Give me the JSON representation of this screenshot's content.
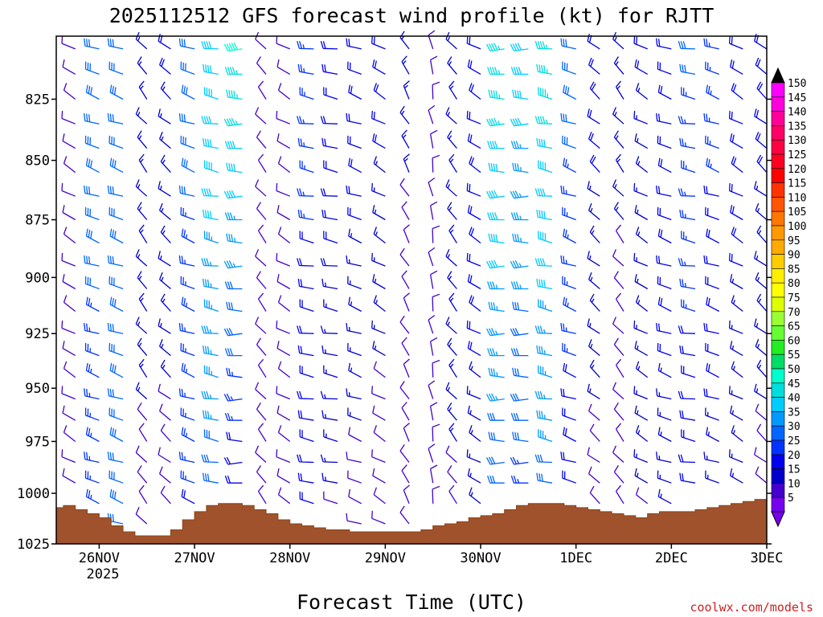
{
  "title": "2025112512 GFS forecast wind profile (kt) for RJTT",
  "credit": "coolwx.com/models",
  "colors": {
    "terrain": "#a0522d",
    "terrain_stroke": "#8b4513",
    "frame": "#000000",
    "credit": "#cc2222"
  },
  "chart_data": {
    "type": "wind-barb-profile",
    "title": "2025112512 GFS forecast wind profile (kt) for RJTT",
    "xlabel": "Forecast Time (UTC)",
    "ylabel": "",
    "y_ticks": [
      "825",
      "850",
      "875",
      "900",
      "925",
      "950",
      "975",
      "1000",
      "1025"
    ],
    "y_range_hpa": [
      800,
      1025
    ],
    "x_ticks": [
      "26NOV",
      "27NOV",
      "28NOV",
      "29NOV",
      "30NOV",
      "1DEC",
      "2DEC",
      "3DEC"
    ],
    "x_year_label": "2025",
    "x_range_days": [
      -0.45,
      7
    ],
    "colorbar_levels": [
      "150",
      "145",
      "140",
      "135",
      "130",
      "125",
      "120",
      "115",
      "110",
      "105",
      "100",
      "95",
      "90",
      "85",
      "80",
      "75",
      "70",
      "65",
      "60",
      "55",
      "50",
      "45",
      "40",
      "35",
      "30",
      "25",
      "20",
      "15",
      "10",
      "5"
    ],
    "colorbar_colors": [
      "#ff00ff",
      "#ff00dd",
      "#ff0099",
      "#ff0066",
      "#ff0044",
      "#ff0022",
      "#ff0000",
      "#ff3300",
      "#ff5500",
      "#ff7700",
      "#ff9900",
      "#ffaa00",
      "#ffcc00",
      "#ffee00",
      "#ffff00",
      "#ddff00",
      "#99ff33",
      "#66ff33",
      "#22ee22",
      "#00dd66",
      "#00ffcc",
      "#00dddd",
      "#00ccff",
      "#0099ff",
      "#0066ff",
      "#0033ff",
      "#0000ee",
      "#0000cc",
      "#4400cc",
      "#7700ee"
    ],
    "surface_pressure_hpa": {
      "days": [
        -0.45,
        -0.375,
        -0.25,
        -0.125,
        0,
        0.125,
        0.25,
        0.375,
        0.5,
        0.625,
        0.75,
        0.875,
        1,
        1.125,
        1.25,
        1.375,
        1.5,
        1.625,
        1.75,
        1.875,
        2,
        2.125,
        2.25,
        2.375,
        2.5,
        2.625,
        2.75,
        2.875,
        3,
        3.125,
        3.25,
        3.375,
        3.5,
        3.625,
        3.75,
        3.875,
        4,
        4.125,
        4.25,
        4.375,
        4.5,
        4.625,
        4.75,
        4.875,
        5,
        5.125,
        5.25,
        5.375,
        5.5,
        5.625,
        5.75,
        5.875,
        6,
        6.125,
        6.25,
        6.375,
        6.5,
        6.625,
        6.75,
        6.875,
        7
      ],
      "values": [
        1007,
        1006,
        1008,
        1010,
        1012,
        1016,
        1019,
        1021,
        1021,
        1021,
        1018,
        1013,
        1009,
        1006,
        1005,
        1005,
        1006,
        1008,
        1010,
        1013,
        1015,
        1016,
        1017,
        1018,
        1018,
        1019,
        1019,
        1019,
        1019,
        1019,
        1019,
        1018,
        1016,
        1015,
        1014,
        1012,
        1011,
        1010,
        1008,
        1006,
        1005,
        1005,
        1005,
        1006,
        1007,
        1008,
        1009,
        1010,
        1011,
        1012,
        1010,
        1009,
        1009,
        1009,
        1008,
        1007,
        1006,
        1005,
        1004,
        1003,
        1003
      ]
    },
    "wind_barbs": {
      "levels_hpa": [
        805,
        815,
        825,
        835,
        845,
        855,
        865,
        875,
        885,
        895,
        905,
        915,
        925,
        935,
        945,
        955,
        965,
        975,
        985,
        995,
        1005,
        1015
      ],
      "times_days": [
        -0.25,
        0,
        0.25,
        0.5,
        0.75,
        1,
        1.25,
        1.5,
        1.75,
        2,
        2.25,
        2.5,
        2.75,
        3,
        3.25,
        3.5,
        3.75,
        4,
        4.25,
        4.5,
        4.75,
        5,
        5.25,
        5.5,
        5.75,
        6,
        6.25,
        6.5,
        6.75,
        7
      ],
      "speed_kt_by_time_near_surface": [
        8,
        25,
        30,
        12,
        10,
        22,
        30,
        15,
        10,
        12,
        18,
        12,
        10,
        8,
        8,
        10,
        12,
        15,
        28,
        25,
        30,
        18,
        10,
        8,
        12,
        15,
        18,
        15,
        12,
        10
      ],
      "speed_kt_by_time_aloft": [
        10,
        30,
        28,
        14,
        18,
        30,
        42,
        48,
        12,
        12,
        25,
        22,
        22,
        20,
        14,
        12,
        15,
        22,
        45,
        40,
        45,
        30,
        20,
        15,
        18,
        22,
        28,
        25,
        22,
        20
      ],
      "direction_deg_by_time": [
        300,
        290,
        290,
        320,
        310,
        290,
        280,
        270,
        320,
        300,
        280,
        280,
        290,
        300,
        330,
        350,
        320,
        300,
        270,
        270,
        280,
        290,
        310,
        320,
        300,
        290,
        280,
        290,
        300,
        310
      ]
    }
  }
}
